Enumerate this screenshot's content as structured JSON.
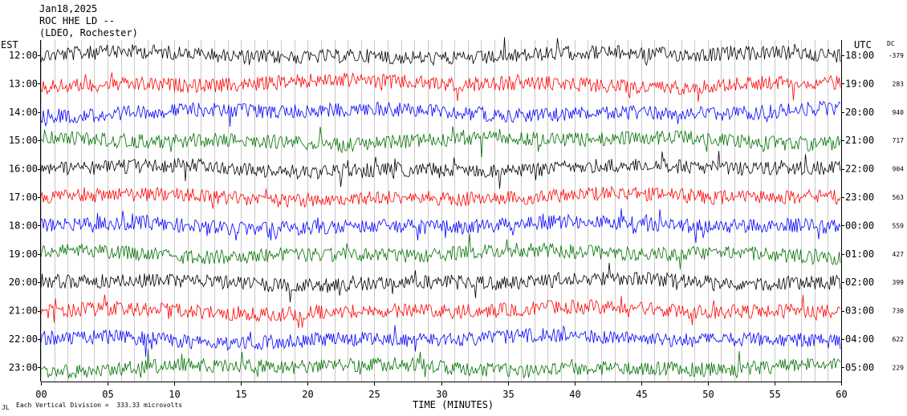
{
  "header": {
    "date": "Jan18,2025",
    "station": "ROC HHE LD --",
    "network": "(LDEO, Rochester)"
  },
  "left_axis_label": "EST",
  "right_axis_label": "UTC",
  "dc_label": "DC",
  "footer": {
    "scale_note": "Each Vertical Division =  333.33 microvolts",
    "corner_mark": "JL",
    "xlabel": "TIME (MINUTES)"
  },
  "colors": {
    "black": "#000000",
    "red": "#ff0000",
    "blue": "#0000ff",
    "green": "#007000",
    "grid": "#c8c8c8"
  },
  "chart_data": {
    "type": "line",
    "title": "ROC HHE LD --",
    "xlabel": "TIME (MINUTES)",
    "xlim": [
      0,
      60
    ],
    "x_ticks": [
      "00",
      "05",
      "10",
      "15",
      "20",
      "25",
      "30",
      "35",
      "40",
      "45",
      "50",
      "55",
      "60"
    ],
    "x_tick_values": [
      0,
      5,
      10,
      15,
      20,
      25,
      30,
      35,
      40,
      45,
      50,
      55,
      60
    ],
    "grid": true,
    "series": [
      {
        "est": "12:00",
        "utc": "18:00",
        "dc": "-379",
        "color": "black"
      },
      {
        "est": "13:00",
        "utc": "19:00",
        "dc": "283",
        "color": "red"
      },
      {
        "est": "14:00",
        "utc": "20:00",
        "dc": "940",
        "color": "blue"
      },
      {
        "est": "15:00",
        "utc": "21:00",
        "dc": "717",
        "color": "green"
      },
      {
        "est": "16:00",
        "utc": "22:00",
        "dc": "904",
        "color": "black"
      },
      {
        "est": "17:00",
        "utc": "23:00",
        "dc": "563",
        "color": "red"
      },
      {
        "est": "18:00",
        "utc": "00:00",
        "dc": "559",
        "color": "blue"
      },
      {
        "est": "19:00",
        "utc": "01:00",
        "dc": "427",
        "color": "green"
      },
      {
        "est": "20:00",
        "utc": "02:00",
        "dc": "399",
        "color": "black"
      },
      {
        "est": "21:00",
        "utc": "03:00",
        "dc": "730",
        "color": "red"
      },
      {
        "est": "22:00",
        "utc": "04:00",
        "dc": "622",
        "color": "blue"
      },
      {
        "est": "23:00",
        "utc": "05:00",
        "dc": "229",
        "color": "green"
      }
    ]
  }
}
